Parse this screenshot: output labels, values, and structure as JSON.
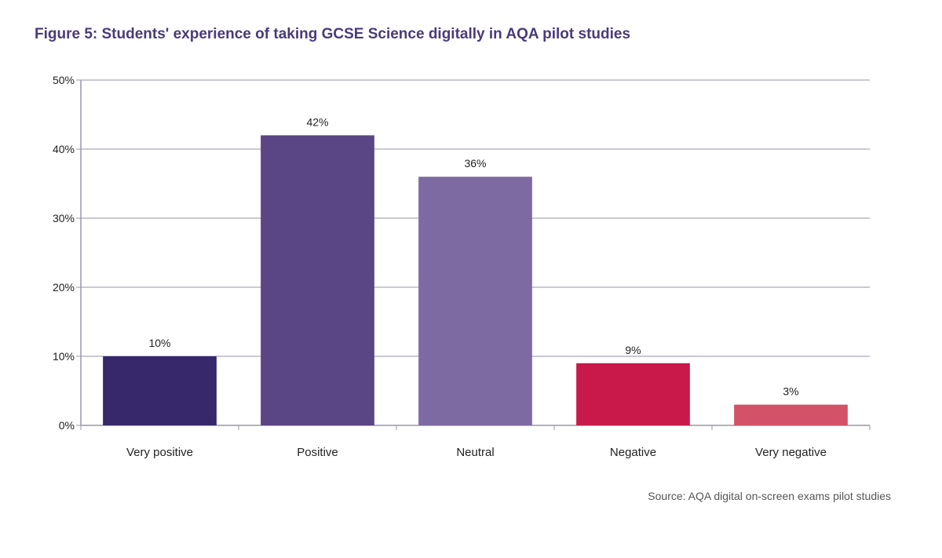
{
  "chart_data": {
    "type": "bar",
    "title": "Figure 5: Students' experience of taking GCSE Science digitally in AQA pilot studies",
    "source": "Source: AQA digital on-screen exams pilot studies",
    "categories": [
      "Very positive",
      "Positive",
      "Neutral",
      "Negative",
      "Very negative"
    ],
    "values": [
      10,
      42,
      36,
      9,
      3
    ],
    "data_labels": [
      "10%",
      "42%",
      "36%",
      "9%",
      "3%"
    ],
    "colors": [
      "#37276b",
      "#5a4585",
      "#7e6aa2",
      "#c8194a",
      "#d45268"
    ],
    "ylim": [
      0,
      50
    ],
    "yticks": [
      0,
      10,
      20,
      30,
      40,
      50
    ],
    "ytick_labels": [
      "0%",
      "10%",
      "20%",
      "30%",
      "40%",
      "50%"
    ],
    "grid": true,
    "xlabel": "",
    "ylabel": ""
  }
}
